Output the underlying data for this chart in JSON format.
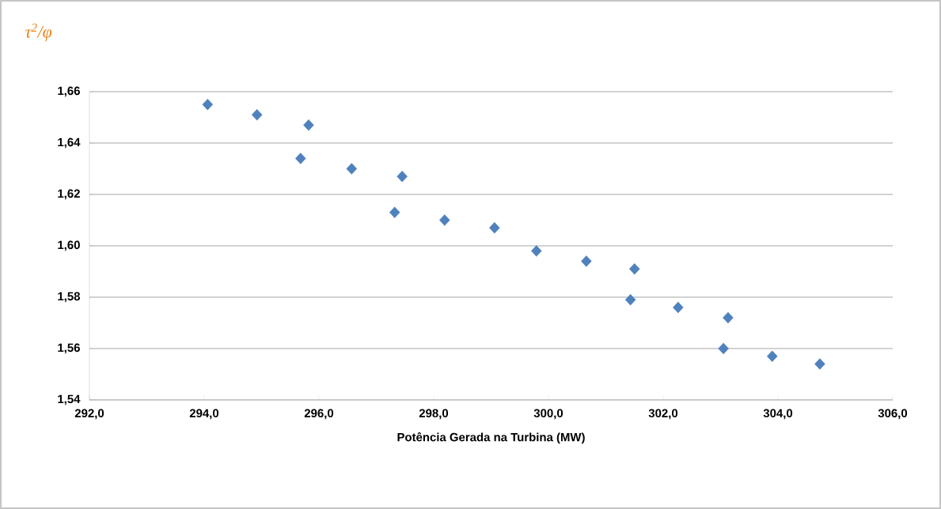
{
  "chart_data": {
    "type": "scatter",
    "xlabel": "Potência Gerada na Turbina (MW)",
    "ylabel": "τ$^{2}$/φ",
    "marker": "diamond",
    "grid": "y",
    "x": [
      294.06,
      294.92,
      295.82,
      295.68,
      296.57,
      297.45,
      297.32,
      298.19,
      299.06,
      299.79,
      300.66,
      301.5,
      301.43,
      302.26,
      303.13,
      303.05,
      303.9,
      304.73
    ],
    "series": [
      {
        "color": "#4f81bd",
        "values": [
          1.655,
          1.651,
          1.647,
          1.634,
          1.63,
          1.627,
          1.613,
          1.61,
          1.607,
          1.598,
          1.594,
          1.591,
          1.579,
          1.576,
          1.572,
          1.56,
          1.557,
          1.554
        ]
      }
    ],
    "xlim": [
      292,
      306
    ],
    "xticks": [
      {
        "value": 292,
        "label": "292,0"
      },
      {
        "value": 294,
        "label": "294,0"
      },
      {
        "value": 296,
        "label": "296,0"
      },
      {
        "value": 298,
        "label": "298,0"
      },
      {
        "value": 300,
        "label": "300,0"
      },
      {
        "value": 302,
        "label": "302,0"
      },
      {
        "value": 304,
        "label": "304,0"
      },
      {
        "value": 306,
        "label": "306,0"
      }
    ],
    "ylim": [
      1.54,
      1.66
    ],
    "yticks": [
      {
        "value": 1.54,
        "label": "1,54"
      },
      {
        "value": 1.56,
        "label": "1,56"
      },
      {
        "value": 1.58,
        "label": "1,58"
      },
      {
        "value": 1.6,
        "label": "1,60"
      },
      {
        "value": 1.62,
        "label": "1,62"
      },
      {
        "value": 1.64,
        "label": "1,64"
      },
      {
        "value": 1.66,
        "label": "1,66"
      }
    ]
  }
}
